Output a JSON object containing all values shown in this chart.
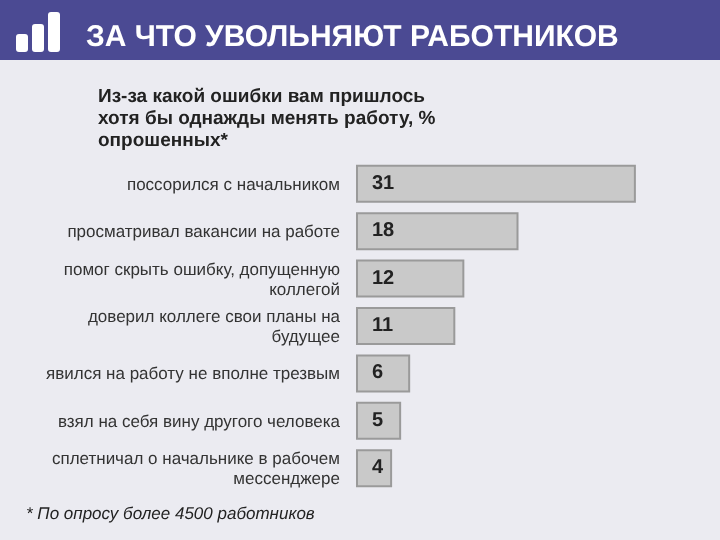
{
  "chart_data": {
    "type": "bar",
    "orientation": "horizontal",
    "title": "ЗА ЧТО УВОЛЬНЯЮТ РАБОТНИКОВ",
    "subtitle": "Из-за какой ошибки вам пришлось хотя бы однажды менять работу, % опрошенных*",
    "categories": [
      "поссорился с начальником",
      "просматривал вакансии на работе",
      "помог скрыть ошибку, допущенную коллегой",
      "доверил коллеге свои планы на будущее",
      "явился на работу не вполне трезвым",
      "взял на себя вину другого человека",
      "сплетничал о начальнике в рабочем мессенджере"
    ],
    "values": [
      31,
      18,
      12,
      11,
      6,
      5,
      4
    ],
    "color": "#c9c9c9",
    "data_labels": true,
    "annotations": [
      "* По опросу более 4500 работников"
    ]
  }
}
